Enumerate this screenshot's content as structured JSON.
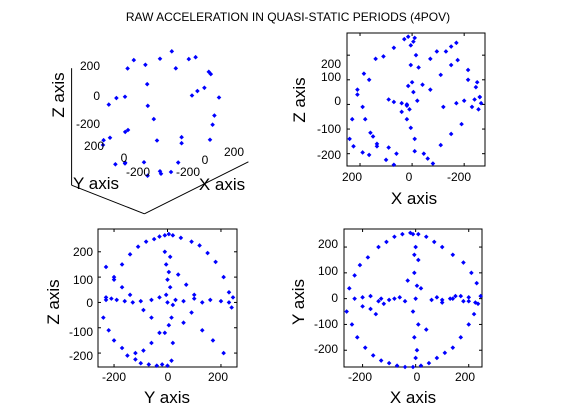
{
  "chart_data": {
    "title": "RAW ACCELERATION IN QUASI-STATIC PERIODS (4POV)",
    "color": "#0000ff",
    "marker": "diamond",
    "subplots": [
      {
        "type": "scatter3d",
        "view": "3d",
        "xlabel": "X axis",
        "ylabel": "Y axis",
        "zlabel": "Z axis",
        "x_ticks": [
          -200,
          0,
          200
        ],
        "x_tick_labels": [
          "-200",
          "0",
          "200"
        ],
        "y_ticks": [
          -200,
          0,
          200
        ],
        "y_tick_labels": [
          "-200",
          "0",
          "200"
        ],
        "z_ticks": [
          -200,
          0,
          200
        ],
        "z_tick_labels": [
          "-200",
          "0",
          "200"
        ],
        "xlim": [
          -260,
          260
        ],
        "ylim": [
          -260,
          260
        ],
        "zlim": [
          -260,
          260
        ],
        "points": [
          [
            0,
            0,
            250
          ],
          [
            80,
            30,
            240
          ],
          [
            150,
            -40,
            200
          ],
          [
            200,
            80,
            140
          ],
          [
            240,
            -20,
            80
          ],
          [
            230,
            100,
            -40
          ],
          [
            200,
            -90,
            -110
          ],
          [
            150,
            60,
            -180
          ],
          [
            70,
            -30,
            -235
          ],
          [
            -10,
            100,
            -230
          ],
          [
            -90,
            -40,
            -220
          ],
          [
            -160,
            90,
            -170
          ],
          [
            -210,
            -50,
            -110
          ],
          [
            -240,
            60,
            -20
          ],
          [
            -230,
            -100,
            60
          ],
          [
            -190,
            40,
            150
          ],
          [
            -120,
            -80,
            210
          ],
          [
            -40,
            130,
            230
          ],
          [
            60,
            190,
            150
          ],
          [
            100,
            230,
            -60
          ],
          [
            -20,
            220,
            -120
          ],
          [
            -130,
            180,
            60
          ],
          [
            0,
            250,
            20
          ],
          [
            40,
            -210,
            140
          ],
          [
            -60,
            -240,
            -40
          ],
          [
            110,
            -200,
            -110
          ],
          [
            -150,
            -170,
            90
          ],
          [
            190,
            -150,
            30
          ],
          [
            250,
            40,
            0
          ],
          [
            -250,
            0,
            10
          ],
          [
            20,
            -50,
            -250
          ],
          [
            -50,
            160,
            190
          ],
          [
            170,
            130,
            100
          ],
          [
            160,
            -120,
            150
          ],
          [
            -100,
            -150,
            -180
          ],
          [
            90,
            150,
            -190
          ],
          [
            -180,
            150,
            -90
          ],
          [
            230,
            -60,
            -90
          ],
          [
            -230,
            -80,
            -90
          ],
          [
            0,
            0,
            -250
          ]
        ]
      },
      {
        "type": "scatter",
        "view": "xz",
        "xlabel": "X axis",
        "ylabel": "Z axis",
        "xlim": [
          250,
          -280
        ],
        "ylim": [
          -250,
          290
        ],
        "x_ticks": [
          200,
          0,
          -200
        ],
        "x_tick_labels": [
          "200",
          "0",
          "-200"
        ],
        "y_ticks": [
          -200,
          -100,
          0,
          100,
          200
        ],
        "y_tick_labels": [
          "-200",
          "-100",
          "0",
          "100",
          "200"
        ],
        "x": [
          -10,
          15,
          30,
          -5,
          5,
          -170,
          -150,
          -130,
          -70,
          -95,
          -110,
          -215,
          -245,
          -260,
          -265,
          -255,
          70,
          110,
          140,
          165,
          185,
          210,
          230,
          240,
          225,
          190,
          165,
          135,
          100,
          70,
          -10,
          5,
          20,
          40,
          -15,
          5,
          -25,
          0,
          15,
          -5,
          -40,
          -70,
          160,
          150,
          135,
          60,
          90,
          -45,
          -60,
          -110,
          -150,
          -190,
          -230,
          -260,
          90,
          70,
          40,
          20,
          10,
          -120,
          -170,
          -200,
          -240,
          20,
          -20,
          -150,
          -175,
          -215,
          -250,
          210,
          190,
          180,
          -10,
          -80,
          60
        ],
        "y": [
          270,
          275,
          265,
          255,
          240,
          250,
          235,
          215,
          185,
          215,
          120,
          100,
          70,
          30,
          5,
          -20,
          230,
          195,
          185,
          100,
          125,
          60,
          -60,
          -140,
          -170,
          -195,
          -205,
          -170,
          -225,
          -245,
          -140,
          -95,
          -60,
          -30,
          200,
          160,
          150,
          90,
          75,
          50,
          80,
          60,
          -115,
          -130,
          -160,
          -200,
          -175,
          -200,
          -220,
          -165,
          -120,
          -80,
          -10,
          30,
          20,
          10,
          5,
          -5,
          -20,
          -10,
          5,
          15,
          20,
          0,
          15,
          160,
          180,
          140,
          90,
          40,
          -10,
          -60,
          -190,
          -240,
          -270
        ]
      },
      {
        "type": "scatter",
        "view": "yz",
        "xlabel": "Y axis",
        "ylabel": "Z axis",
        "xlim": [
          -260,
          260
        ],
        "ylim": [
          -255,
          290
        ],
        "x_ticks": [
          -200,
          0,
          200
        ],
        "x_tick_labels": [
          "-200",
          "0",
          "200"
        ],
        "y_ticks": [
          -200,
          -100,
          0,
          100,
          200
        ],
        "y_tick_labels": [
          "-200",
          "-100",
          "0",
          "100",
          "200"
        ],
        "x": [
          -230,
          -200,
          -170,
          -140,
          -110,
          -80,
          -50,
          -30,
          -10,
          5,
          20,
          50,
          90,
          120,
          150,
          180,
          210,
          230,
          240,
          245,
          -240,
          -220,
          -200,
          -170,
          -150,
          -120,
          -100,
          -70,
          -40,
          -20,
          0,
          15,
          -10,
          10,
          -5,
          5,
          0,
          10,
          -5,
          15,
          5,
          -10,
          20,
          -230,
          -210,
          -190,
          -160,
          -130,
          -100,
          -60,
          -30,
          0,
          30,
          60,
          100,
          130,
          160,
          200,
          230,
          -230,
          -200,
          -170,
          -140,
          -90,
          -60,
          60,
          90,
          130,
          170,
          210,
          20,
          -30,
          -60,
          -90,
          -120,
          40,
          70,
          100
        ],
        "y": [
          10,
          90,
          150,
          190,
          220,
          240,
          250,
          260,
          265,
          270,
          265,
          255,
          240,
          225,
          195,
          160,
          100,
          40,
          -20,
          20,
          -60,
          -110,
          -150,
          -180,
          -210,
          -225,
          -240,
          -245,
          -250,
          -245,
          -250,
          -230,
          200,
          180,
          150,
          120,
          90,
          60,
          30,
          -60,
          -90,
          -120,
          -160,
          20,
          15,
          10,
          5,
          0,
          5,
          10,
          20,
          0,
          10,
          5,
          15,
          0,
          10,
          5,
          0,
          140,
          100,
          60,
          30,
          -30,
          -60,
          -80,
          -40,
          -110,
          -150,
          -200,
          -10,
          -120,
          -160,
          -190,
          -200,
          110,
          70,
          30
        ]
      },
      {
        "type": "scatter",
        "view": "xy",
        "xlabel": "X axis",
        "ylabel": "Y axis",
        "xlim": [
          -270,
          250
        ],
        "ylim": [
          -265,
          270
        ],
        "x_ticks": [
          -200,
          0,
          200
        ],
        "x_tick_labels": [
          "-200",
          "0",
          "200"
        ],
        "y_ticks": [
          -200,
          -100,
          0,
          100,
          200
        ],
        "y_tick_labels": [
          "-200",
          "-100",
          "0",
          "100",
          "200"
        ],
        "x": [
          -260,
          -240,
          -220,
          -190,
          -160,
          -130,
          -100,
          -70,
          -40,
          -10,
          20,
          50,
          80,
          110,
          140,
          170,
          200,
          220,
          235,
          245,
          -250,
          -230,
          -210,
          -180,
          -140,
          -110,
          -80,
          -50,
          -20,
          10,
          40,
          70,
          100,
          140,
          180,
          210,
          230,
          -10,
          0,
          10,
          -5,
          5,
          0,
          -10,
          10,
          -5,
          5,
          0,
          -5,
          -140,
          -120,
          -100,
          -80,
          -60,
          -40,
          60,
          80,
          100,
          130,
          150,
          180,
          200,
          -200,
          -170,
          -150,
          -30,
          20,
          40,
          -230,
          -200,
          -170,
          -130,
          100,
          140,
          170,
          200,
          225
        ],
        "y": [
          -50,
          -100,
          -150,
          -190,
          -220,
          -240,
          -250,
          -260,
          -265,
          -265,
          -260,
          -250,
          -230,
          -210,
          -190,
          -150,
          -100,
          -60,
          -20,
          10,
          40,
          90,
          130,
          160,
          200,
          220,
          240,
          250,
          255,
          250,
          240,
          220,
          200,
          170,
          140,
          100,
          60,
          250,
          200,
          150,
          100,
          50,
          0,
          -50,
          -100,
          -150,
          -200,
          -230,
          170,
          -10,
          -20,
          -5,
          0,
          5,
          -10,
          -5,
          5,
          -15,
          0,
          10,
          -10,
          5,
          -30,
          -40,
          -60,
          70,
          40,
          -120,
          0,
          5,
          10,
          0,
          -5,
          0,
          10,
          -10,
          -15
        ]
      }
    ]
  }
}
